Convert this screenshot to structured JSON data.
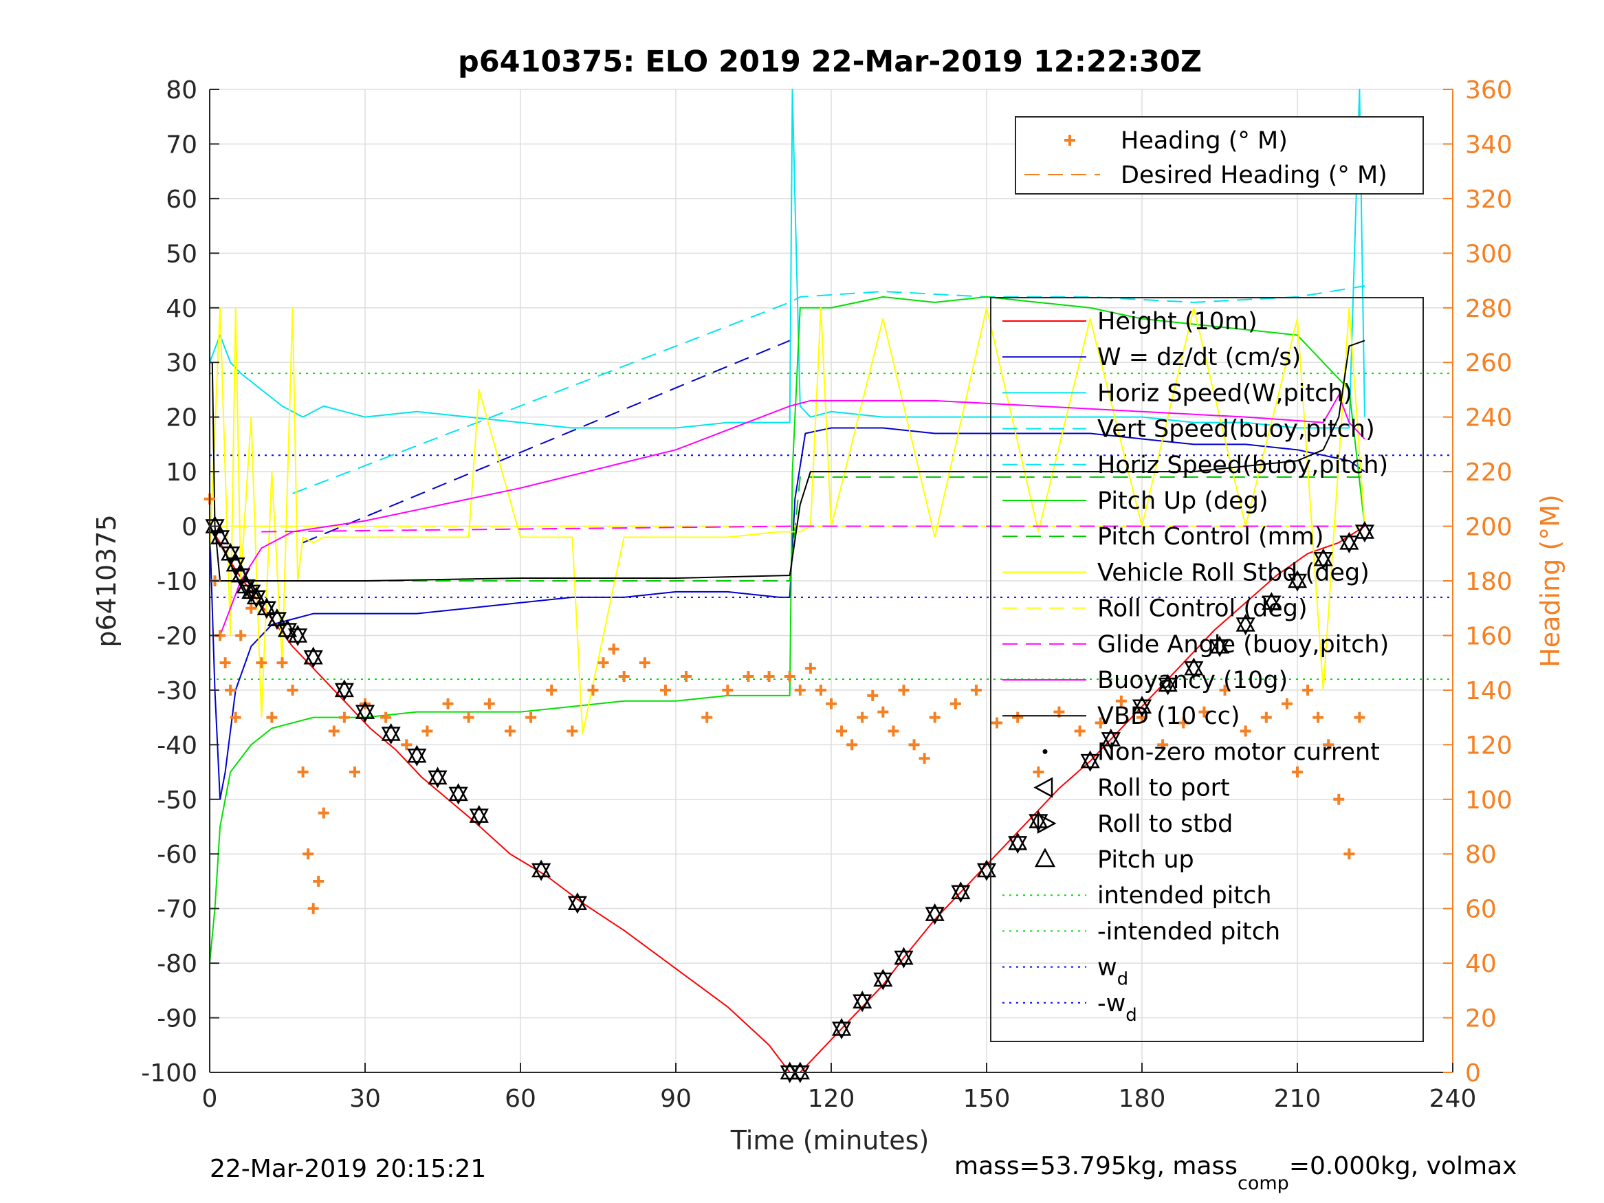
{
  "chart_data": {
    "type": "line",
    "title": "p6410375: ELO 2019 22-Mar-2019 12:22:30Z",
    "xlabel": "Time (minutes)",
    "ylabel": "p6410375",
    "ylabel_right": "Heading (°M)",
    "xlim": [
      0,
      240
    ],
    "ylim": [
      -100,
      80
    ],
    "ylim_right": [
      0,
      360
    ],
    "xticks": [
      0,
      30,
      60,
      90,
      120,
      150,
      180,
      210,
      240
    ],
    "yticks": [
      -100,
      -90,
      -80,
      -70,
      -60,
      -50,
      -40,
      -30,
      -20,
      -10,
      0,
      10,
      20,
      30,
      40,
      50,
      60,
      70,
      80
    ],
    "yticks_right": [
      0,
      20,
      40,
      60,
      80,
      100,
      120,
      140,
      160,
      180,
      200,
      220,
      240,
      260,
      280,
      300,
      320,
      340,
      360
    ],
    "grid": true,
    "legend_top": {
      "placement": "top-right",
      "entries": [
        "Heading (° M)",
        "Desired Heading (° M)"
      ]
    },
    "legend_main": {
      "placement": "right",
      "entries": [
        "Height (10m)",
        "W = dz/dt (cm/s)",
        "Horiz Speed(W,pitch)",
        "Vert Speed(buoy,pitch)",
        "Horiz Speed(buoy,pitch)",
        "Pitch Up (deg)",
        "Pitch Control (mm)",
        "Vehicle Roll Stbd (deg)",
        "Roll Control (deg)",
        "Glide Angle (buoy,pitch)",
        "Buoyancy (10g)",
        "VBD (10 cc)",
        "Non-zero motor current",
        "Roll to port",
        "Roll to stbd",
        "Pitch up",
        "intended pitch",
        "-intended pitch",
        "w",
        "-w"
      ],
      "subscript": "d"
    },
    "series": [
      {
        "name": "Height (10m)",
        "color": "#ff0000",
        "x": [
          0,
          2,
          5,
          8,
          12,
          16,
          20,
          26,
          31,
          36,
          41,
          46,
          51,
          58,
          65,
          72,
          80,
          90,
          100,
          108,
          112,
          114,
          118,
          122,
          126,
          130,
          134,
          140,
          146,
          152,
          158,
          164,
          170,
          176,
          182,
          188,
          194,
          200,
          206,
          212,
          218,
          223
        ],
        "y": [
          0,
          -3,
          -8,
          -12,
          -17,
          -22,
          -26,
          -32,
          -37,
          -41,
          -46,
          -50,
          -54,
          -60,
          -64,
          -69,
          -74,
          -81,
          -88,
          -95,
          -100,
          -100,
          -96,
          -92,
          -88,
          -84,
          -79,
          -72,
          -66,
          -60,
          -54,
          -48,
          -43,
          -37,
          -31,
          -25,
          -19,
          -14,
          -9,
          -5,
          -3,
          0
        ]
      },
      {
        "name": "W = dz/dt (cm/s)",
        "color": "#0000cd",
        "x": [
          0,
          1,
          2,
          3,
          5,
          8,
          12,
          16,
          20,
          30,
          40,
          50,
          60,
          70,
          80,
          90,
          100,
          110,
          112,
          113,
          115,
          120,
          130,
          140,
          150,
          160,
          170,
          180,
          190,
          200,
          210,
          220,
          223
        ],
        "y": [
          0,
          -30,
          -50,
          -45,
          -30,
          -22,
          -18,
          -17,
          -16,
          -16,
          -16,
          -15,
          -14,
          -13,
          -13,
          -12,
          -12,
          -13,
          -13,
          5,
          17,
          18,
          18,
          17,
          17,
          17,
          17,
          16,
          15,
          15,
          14,
          12,
          10
        ]
      },
      {
        "name": "W = dz/dt (cm/s) (model)",
        "color": "#0000cd",
        "dash": true,
        "x": [
          18,
          112
        ],
        "y": [
          -3,
          34
        ]
      },
      {
        "name": "Horiz Speed(W,pitch)",
        "color": "#00e5ee",
        "x": [
          0,
          2,
          4,
          6,
          10,
          14,
          18,
          22,
          30,
          40,
          50,
          60,
          70,
          80,
          90,
          100,
          110,
          112,
          112.5,
          113,
          114,
          116,
          120,
          130,
          140,
          150,
          160,
          170,
          180,
          190,
          200,
          210,
          220,
          222,
          223
        ],
        "y": [
          30,
          35,
          30,
          28,
          25,
          22,
          20,
          22,
          20,
          21,
          20,
          19,
          18,
          18,
          18,
          19,
          19,
          19,
          80,
          60,
          22,
          20,
          21,
          20,
          20,
          20,
          20,
          20,
          20,
          19,
          19,
          18,
          18,
          80,
          20
        ]
      },
      {
        "name": "Horiz Speed(buoy,pitch)",
        "color": "#00e5ee",
        "dash": true,
        "x": [
          16,
          112,
          114,
          130,
          150,
          170,
          190,
          210,
          223
        ],
        "y": [
          6,
          41,
          42,
          43,
          42,
          42,
          41,
          42,
          44
        ]
      },
      {
        "name": "Pitch Up (deg)",
        "color": "#00e000",
        "x": [
          0,
          1,
          2,
          4,
          8,
          12,
          16,
          20,
          30,
          40,
          50,
          60,
          70,
          80,
          90,
          100,
          110,
          112,
          112.5,
          114,
          120,
          130,
          140,
          150,
          160,
          170,
          180,
          190,
          200,
          210,
          220,
          223
        ],
        "y": [
          -80,
          -70,
          -55,
          -45,
          -40,
          -37,
          -36,
          -35,
          -35,
          -34,
          -34,
          -34,
          -33,
          -32,
          -32,
          -31,
          -31,
          -31,
          10,
          40,
          40,
          42,
          41,
          42,
          41,
          40,
          38,
          37,
          36,
          35,
          25,
          0
        ]
      },
      {
        "name": "Pitch Control (mm)",
        "color": "#00c800",
        "dash": true,
        "x": [
          12,
          112,
          114,
          223
        ],
        "y": [
          -10,
          -10,
          9,
          9
        ]
      },
      {
        "name": "Vehicle Roll Stbd (deg)",
        "color": "#ffff00",
        "x": [
          0,
          2,
          3,
          4,
          5,
          6,
          8,
          10,
          12,
          14,
          16,
          17,
          18,
          20,
          22,
          30,
          40,
          50,
          52,
          60,
          64,
          70,
          72,
          80,
          90,
          100,
          110,
          112,
          114,
          116,
          118,
          120,
          130,
          140,
          150,
          160,
          170,
          180,
          190,
          200,
          210,
          215,
          220,
          223
        ],
        "y": [
          -5,
          40,
          10,
          -20,
          40,
          -10,
          20,
          -35,
          10,
          -25,
          40,
          -10,
          -2,
          -3,
          -2,
          -2,
          -2,
          -2,
          25,
          -2,
          -2,
          -2,
          -38,
          -2,
          -2,
          -2,
          -1,
          -1,
          -1,
          0,
          40,
          0,
          38,
          -2,
          40,
          -1,
          38,
          0,
          40,
          0,
          38,
          -30,
          40,
          0
        ]
      },
      {
        "name": "Roll Control (deg)",
        "color": "#ffff00",
        "dash": true,
        "x": [
          0,
          223
        ],
        "y": [
          0,
          0
        ]
      },
      {
        "name": "Glide Angle (buoy,pitch)",
        "color": "#ff00ff",
        "dash": true,
        "x": [
          10,
          112,
          223
        ],
        "y": [
          -1,
          0,
          0
        ]
      },
      {
        "name": "Buoyancy (10g)",
        "color": "#ff00ff",
        "x": [
          2,
          6,
          10,
          16,
          30,
          60,
          90,
          112,
          116,
          140,
          160,
          180,
          200,
          215,
          218,
          220,
          223
        ],
        "y": [
          -20,
          -10,
          -4,
          -1,
          1,
          7,
          14,
          22,
          23,
          23,
          22,
          21,
          20,
          19,
          24,
          19,
          16
        ]
      },
      {
        "name": "VBD (10 cc)",
        "color": "#000000",
        "x": [
          0,
          0.5,
          1,
          2,
          10,
          30,
          60,
          90,
          112,
          114,
          116,
          150,
          190,
          200,
          210,
          215,
          218,
          220,
          223
        ],
        "y": [
          30,
          30,
          0,
          -10,
          -10,
          -10,
          -9.5,
          -9.5,
          -9,
          4,
          10,
          10,
          10,
          11,
          12,
          14,
          20,
          33,
          34
        ]
      }
    ],
    "hlines": [
      {
        "name": "intended pitch",
        "y": 28,
        "color": "#00e000"
      },
      {
        "name": "-intended pitch",
        "y": -28,
        "color": "#00e000"
      },
      {
        "name": "w",
        "y": 13,
        "color": "#0000ff"
      },
      {
        "name": "-w",
        "y": -13,
        "color": "#0000ff"
      }
    ],
    "markers": {
      "x": [
        1,
        2,
        4,
        5,
        6,
        7,
        8,
        9,
        11,
        13,
        15,
        17,
        20,
        26,
        30,
        35,
        40,
        44,
        48,
        52,
        64,
        71,
        112,
        114,
        122,
        126,
        130,
        134,
        140,
        145,
        150,
        156,
        160,
        170,
        174,
        180,
        185,
        190,
        195,
        200,
        205,
        210,
        215,
        220,
        223
      ],
      "y": [
        0,
        -2,
        -5,
        -7,
        -9,
        -11,
        -12,
        -13,
        -15,
        -17,
        -19,
        -20,
        -24,
        -30,
        -34,
        -38,
        -42,
        -46,
        -49,
        -53,
        -63,
        -69,
        -100,
        -100,
        -92,
        -87,
        -83,
        -79,
        -71,
        -67,
        -63,
        -58,
        -54,
        -43,
        -39,
        -33,
        -29,
        -26,
        -22,
        -18,
        -14,
        -10,
        -6,
        -3,
        -1
      ]
    },
    "heading_right": {
      "name": "Heading (° M)",
      "color": "#f57f21",
      "x": [
        0,
        1,
        2,
        3,
        4,
        5,
        6,
        8,
        10,
        12,
        14,
        16,
        18,
        19,
        20,
        21,
        22,
        24,
        26,
        28,
        30,
        34,
        38,
        42,
        46,
        50,
        54,
        58,
        62,
        66,
        70,
        74,
        76,
        78,
        80,
        84,
        88,
        92,
        96,
        100,
        104,
        108,
        112,
        114,
        116,
        118,
        120,
        122,
        124,
        126,
        128,
        130,
        132,
        134,
        136,
        138,
        140,
        144,
        148,
        152,
        156,
        160,
        164,
        168,
        172,
        176,
        180,
        184,
        188,
        192,
        196,
        200,
        204,
        208,
        210,
        212,
        214,
        216,
        218,
        220,
        222
      ],
      "y": [
        210,
        180,
        160,
        150,
        140,
        130,
        160,
        170,
        150,
        130,
        150,
        140,
        110,
        80,
        60,
        70,
        95,
        125,
        130,
        110,
        135,
        130,
        120,
        125,
        135,
        130,
        135,
        125,
        130,
        140,
        125,
        140,
        150,
        155,
        145,
        150,
        140,
        145,
        130,
        140,
        145,
        145,
        145,
        140,
        148,
        140,
        135,
        125,
        120,
        130,
        138,
        132,
        125,
        140,
        120,
        115,
        130,
        135,
        140,
        128,
        130,
        110,
        132,
        125,
        128,
        136,
        130,
        120,
        128,
        132,
        140,
        125,
        130,
        135,
        110,
        140,
        130,
        120,
        100,
        80,
        130
      ]
    },
    "footer_left": "22-Mar-2019 20:15:21",
    "footer_right_prefix": "mass=53.795kg, mass",
    "footer_right_sub": "comp",
    "footer_right_suffix": "=0.000kg, volmax"
  }
}
